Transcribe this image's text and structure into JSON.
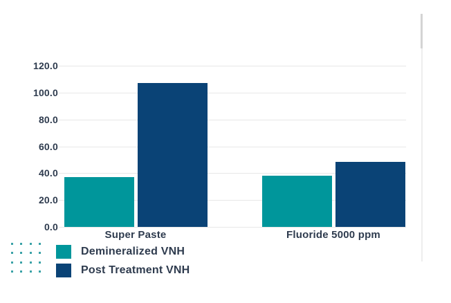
{
  "chart_data": {
    "type": "bar",
    "title": "",
    "xlabel": "",
    "ylabel": "",
    "categories": [
      "Super Paste",
      "Fluoride 5000 ppm"
    ],
    "series": [
      {
        "name": "Demineralized VNH",
        "color": "#00969b",
        "values": [
          37.3,
          38.1
        ]
      },
      {
        "name": "Post Treatment VNH",
        "color": "#0a4376",
        "values": [
          106.9,
          48.4
        ]
      }
    ],
    "ylim": [
      0,
      120
    ],
    "ytick_labels": [
      "0.0",
      "20.0",
      "40.0",
      "60.0",
      "80.0",
      "100.0",
      "120.0"
    ],
    "grid": "horizontal",
    "legend_position": "bottom-left"
  },
  "legend": {
    "items": [
      {
        "label": "Demineralized VNH",
        "color": "#00969b"
      },
      {
        "label": "Post Treatment VNH",
        "color": "#0a4376"
      }
    ]
  },
  "colors": {
    "background": "#ffffff",
    "text": "#2e3b4e",
    "gridline": "#e7e7e7",
    "teal": "#00969b",
    "navy": "#0a4376",
    "dot_decoration": "#3ba2a7",
    "scrollbar_track": "#ededed",
    "scrollbar_thumb": "#d4d4d4"
  }
}
